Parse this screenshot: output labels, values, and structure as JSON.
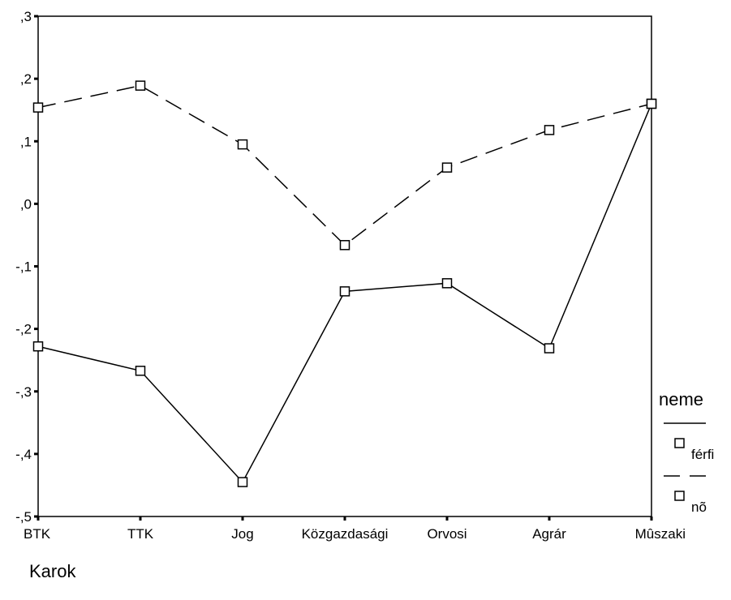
{
  "chart_data": {
    "type": "line",
    "categories": [
      "BTK",
      "TTK",
      "Jog",
      "Közgazdasági",
      "Orvosi",
      "Agrár",
      "Mûszaki"
    ],
    "series": [
      {
        "name": "férfi",
        "line_style": "solid",
        "marker": "open-square",
        "values": [
          -0.228,
          -0.267,
          -0.445,
          -0.14,
          -0.127,
          -0.231,
          0.16
        ]
      },
      {
        "name": "nõ",
        "line_style": "dashed",
        "marker": "open-square",
        "values": [
          0.154,
          0.189,
          0.095,
          -0.066,
          0.058,
          0.118,
          0.16
        ]
      }
    ],
    "y_ticks": [
      0.3,
      0.2,
      0.1,
      0.0,
      -0.1,
      -0.2,
      -0.3,
      -0.4,
      -0.5
    ],
    "y_tick_labels": [
      ",3",
      ",2",
      ",1",
      ",0",
      "-,1",
      "-,2",
      "-,3",
      "-,4",
      "-,5"
    ],
    "ylim": [
      -0.5,
      0.3
    ],
    "xlabel": "Karok",
    "ylabel": "",
    "title": "",
    "grid": false,
    "legend": {
      "title": "neme",
      "placement": "right"
    }
  }
}
